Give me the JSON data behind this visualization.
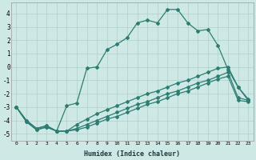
{
  "xlabel": "Humidex (Indice chaleur)",
  "ylabel": "",
  "bg_color": "#cde8e5",
  "line_color": "#2e7d72",
  "grid_color": "#b0d0cc",
  "xlim": [
    -0.5,
    23.5
  ],
  "ylim": [
    -5.5,
    4.8
  ],
  "xticks": [
    0,
    1,
    2,
    3,
    4,
    5,
    6,
    7,
    8,
    9,
    10,
    11,
    12,
    13,
    14,
    15,
    16,
    17,
    18,
    19,
    20,
    21,
    22,
    23
  ],
  "yticks": [
    -5,
    -4,
    -3,
    -2,
    -1,
    0,
    1,
    2,
    3,
    4
  ],
  "line1_x": [
    0,
    1,
    2,
    3,
    4,
    5,
    6,
    7,
    8,
    9,
    10,
    11,
    12,
    13,
    14,
    15,
    16,
    17,
    18,
    19,
    20,
    21,
    22,
    23
  ],
  "line1_y": [
    -3.0,
    -4.0,
    -4.6,
    -4.4,
    -4.8,
    -2.9,
    -2.7,
    -0.1,
    0.0,
    1.3,
    1.7,
    2.2,
    3.3,
    3.5,
    3.3,
    4.3,
    4.3,
    3.3,
    2.7,
    2.8,
    1.6,
    -0.2,
    -1.5,
    -2.5
  ],
  "line2_x": [
    0,
    1,
    2,
    3,
    4,
    5,
    6,
    7,
    8,
    9,
    10,
    11,
    12,
    13,
    14,
    15,
    16,
    17,
    18,
    19,
    20,
    21,
    22,
    23
  ],
  "line2_y": [
    -3.0,
    -4.1,
    -4.7,
    -4.5,
    -4.8,
    -4.8,
    -4.3,
    -3.9,
    -3.5,
    -3.2,
    -2.9,
    -2.6,
    -2.3,
    -2.0,
    -1.8,
    -1.5,
    -1.2,
    -1.0,
    -0.7,
    -0.4,
    -0.1,
    0.0,
    -1.5,
    -2.4
  ],
  "line3_x": [
    0,
    1,
    2,
    3,
    4,
    5,
    6,
    7,
    8,
    9,
    10,
    11,
    12,
    13,
    14,
    15,
    16,
    17,
    18,
    19,
    20,
    21,
    22,
    23
  ],
  "line3_y": [
    -3.0,
    -4.1,
    -4.7,
    -4.5,
    -4.8,
    -4.8,
    -4.6,
    -4.3,
    -4.0,
    -3.7,
    -3.4,
    -3.1,
    -2.8,
    -2.6,
    -2.3,
    -2.0,
    -1.8,
    -1.5,
    -1.2,
    -1.0,
    -0.7,
    -0.4,
    -2.3,
    -2.5
  ],
  "line4_x": [
    0,
    1,
    2,
    3,
    4,
    5,
    6,
    7,
    8,
    9,
    10,
    11,
    12,
    13,
    14,
    15,
    16,
    17,
    18,
    19,
    20,
    21,
    22,
    23
  ],
  "line4_y": [
    -3.0,
    -4.0,
    -4.6,
    -4.4,
    -4.8,
    -4.8,
    -4.7,
    -4.5,
    -4.2,
    -3.9,
    -3.7,
    -3.4,
    -3.1,
    -2.8,
    -2.6,
    -2.3,
    -2.0,
    -1.8,
    -1.5,
    -1.2,
    -0.9,
    -0.7,
    -2.5,
    -2.6
  ]
}
